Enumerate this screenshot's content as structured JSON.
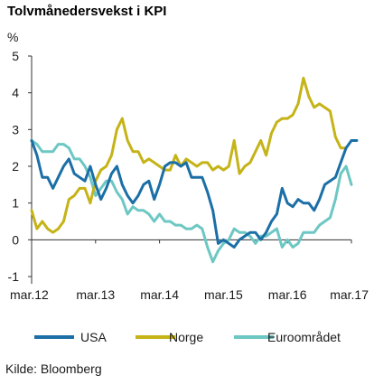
{
  "chart_data": {
    "type": "line",
    "title": "Tolvmånedersvekst i KPI",
    "y_unit": "%",
    "ylim": [
      -1,
      5
    ],
    "y_ticks": [
      -1,
      0,
      1,
      2,
      3,
      4,
      5
    ],
    "x_start": "2012-03",
    "x_end": "2017-03",
    "x_ticks": [
      {
        "label": "mar.12",
        "t": "2012-03"
      },
      {
        "label": "mar.13",
        "t": "2013-03"
      },
      {
        "label": "mar.14",
        "t": "2014-03"
      },
      {
        "label": "mar.15",
        "t": "2015-03"
      },
      {
        "label": "mar.16",
        "t": "2016-03"
      },
      {
        "label": "mar.17",
        "t": "2017-03"
      }
    ],
    "grid": false,
    "legend_position": "bottom",
    "source": "Kilde: Bloomberg",
    "series": [
      {
        "name": "USA",
        "color": "#1b6fa6",
        "start": "2012-03",
        "values": [
          2.7,
          2.3,
          1.7,
          1.7,
          1.4,
          1.7,
          2.0,
          2.2,
          1.8,
          1.7,
          1.6,
          2.0,
          1.5,
          1.1,
          1.4,
          1.8,
          2.0,
          1.5,
          1.2,
          1.0,
          1.2,
          1.5,
          1.6,
          1.1,
          1.5,
          2.0,
          2.1,
          2.1,
          2.0,
          2.1,
          1.7,
          1.7,
          1.7,
          1.3,
          0.8,
          -0.1,
          0.0,
          -0.1,
          -0.2,
          0.0,
          0.1,
          0.2,
          0.2,
          0.0,
          0.2,
          0.5,
          0.7,
          1.4,
          1.0,
          0.9,
          1.1,
          1.0,
          1.0,
          0.8,
          1.1,
          1.5,
          1.6,
          1.7,
          2.1,
          2.5,
          2.7,
          2.7
        ]
      },
      {
        "name": "Norge",
        "color": "#c5b317",
        "start": "2012-03",
        "values": [
          0.8,
          0.3,
          0.5,
          0.3,
          0.2,
          0.3,
          0.5,
          1.1,
          1.2,
          1.4,
          1.4,
          1.0,
          1.6,
          1.9,
          2.0,
          2.3,
          3.0,
          3.3,
          2.7,
          2.4,
          2.4,
          2.1,
          2.2,
          2.1,
          2.0,
          1.9,
          1.9,
          2.3,
          2.0,
          2.2,
          2.1,
          2.0,
          2.1,
          2.1,
          1.9,
          2.0,
          1.9,
          2.0,
          2.7,
          1.8,
          2.0,
          2.1,
          2.4,
          2.7,
          2.3,
          2.9,
          3.2,
          3.3,
          3.3,
          3.4,
          3.7,
          4.4,
          3.9,
          3.6,
          3.7,
          3.6,
          3.5,
          2.8,
          2.5,
          2.5
        ]
      },
      {
        "name": "Euroområdet",
        "color": "#6dc7c3",
        "start": "2012-03",
        "values": [
          2.7,
          2.6,
          2.4,
          2.4,
          2.4,
          2.6,
          2.6,
          2.5,
          2.2,
          2.2,
          2.0,
          1.7,
          1.2,
          1.4,
          1.6,
          1.6,
          1.3,
          1.1,
          0.7,
          0.9,
          0.8,
          0.8,
          0.7,
          0.5,
          0.7,
          0.5,
          0.5,
          0.4,
          0.4,
          0.3,
          0.3,
          0.4,
          0.3,
          -0.2,
          -0.6,
          -0.3,
          -0.1,
          0.0,
          0.3,
          0.2,
          0.2,
          0.1,
          -0.1,
          0.1,
          0.1,
          0.2,
          0.3,
          -0.2,
          0.0,
          -0.2,
          -0.1,
          0.2,
          0.2,
          0.2,
          0.4,
          0.5,
          0.6,
          1.1,
          1.8,
          2.0,
          1.5
        ]
      }
    ]
  }
}
